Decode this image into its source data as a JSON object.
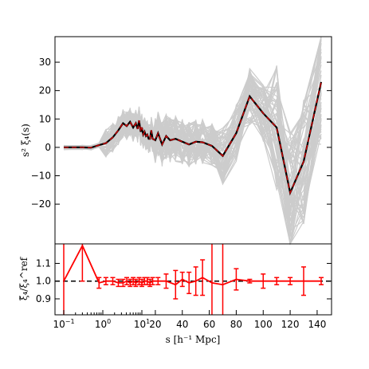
{
  "chart_data": [
    {
      "type": "line",
      "panel": "main",
      "ylabel": "s² ξ₄(s)",
      "ylim": [
        -34,
        39
      ],
      "yticks": [
        -20,
        -10,
        0,
        10,
        20,
        30
      ],
      "ytick_labels": [
        "−20",
        "−10",
        "0",
        "10",
        "20",
        "30"
      ],
      "grid": false,
      "mock_band_color": "#cccccc",
      "series": [
        {
          "color": "#000000",
          "x": [
            0.1,
            0.3,
            0.5,
            0.8,
            1.2,
            1.8,
            2.5,
            3.3,
            4.1,
            5.0,
            6.0,
            7.0,
            7.8,
            8.5,
            9.3,
            10.0,
            11.0,
            12.0,
            13.0,
            14.0,
            15.0,
            16.0,
            17.0,
            18.0,
            20,
            22,
            25,
            28,
            31,
            35,
            40,
            45,
            50,
            55,
            62,
            70,
            80,
            90,
            100,
            110,
            120,
            130,
            143
          ],
          "y": [
            0,
            0,
            -0.1,
            0.8,
            1.5,
            3.5,
            6.0,
            8.5,
            7.5,
            9.0,
            7.0,
            8.5,
            6.5,
            9.5,
            5.5,
            7.0,
            4.5,
            5.5,
            4.0,
            4.5,
            3.0,
            3.0,
            6.0,
            3.0,
            2.5,
            5.0,
            1.0,
            4.0,
            2.5,
            3.0,
            2.0,
            1.0,
            2.0,
            1.8,
            0.5,
            -3.0,
            5.0,
            18.0,
            12.0,
            7.0,
            -16.0,
            -5.0,
            23.0
          ]
        },
        {
          "color": "#cc0000",
          "dashed": true,
          "x": [
            0.1,
            0.3,
            0.5,
            0.8,
            1.2,
            1.8,
            2.5,
            3.3,
            4.1,
            5.0,
            6.0,
            7.0,
            7.8,
            8.5,
            9.3,
            10.0,
            11.0,
            12.0,
            13.0,
            14.0,
            15.0,
            16.0,
            17.0,
            18.0,
            20,
            22,
            25,
            28,
            31,
            35,
            40,
            45,
            50,
            55,
            62,
            70,
            80,
            90,
            100,
            110,
            120,
            130,
            143
          ],
          "y": [
            0,
            0,
            -0.1,
            0.8,
            1.5,
            3.5,
            6.0,
            8.5,
            7.5,
            9.0,
            7.0,
            8.5,
            6.5,
            9.5,
            5.5,
            7.0,
            4.5,
            5.5,
            4.0,
            4.5,
            3.0,
            3.0,
            6.0,
            3.0,
            2.5,
            5.0,
            1.0,
            4.0,
            2.5,
            3.0,
            2.0,
            1.0,
            2.0,
            1.8,
            0.5,
            -3.0,
            5.0,
            18.0,
            12.0,
            7.0,
            -16.0,
            -5.0,
            23.0
          ]
        }
      ]
    },
    {
      "type": "line",
      "panel": "ratio",
      "ylabel": "ξ̃₄/ξ₄^ref",
      "xlabel": "s [h⁻¹ Mpc]",
      "ylim": [
        0.81,
        1.21
      ],
      "yticks": [
        0.9,
        1.0,
        1.1
      ],
      "ytick_labels": [
        "0.9",
        "1.0",
        "1.1"
      ],
      "reference_line": 1.0,
      "x_ticks": {
        "log_part": [
          {
            "value": 0.1,
            "label": "10",
            "exp": "−1"
          },
          {
            "value": 1,
            "label": "10",
            "exp": "0"
          },
          {
            "value": 10,
            "label": "10",
            "exp": "1"
          }
        ],
        "linear_part": [
          20,
          40,
          60,
          80,
          100,
          120,
          140
        ]
      },
      "series": [
        {
          "color": "#ff0000",
          "x": [
            0.1,
            0.3,
            0.8,
            1.2,
            1.8,
            2.5,
            3.3,
            4.1,
            5.0,
            6.0,
            7.0,
            8.5,
            10.0,
            12.0,
            14.0,
            16.0,
            18.0,
            22,
            28,
            35,
            40,
            45,
            50,
            55,
            62,
            70,
            80,
            90,
            100,
            110,
            120,
            130,
            143
          ],
          "y": [
            1.0,
            1.2,
            0.99,
            1.0,
            1.0,
            0.99,
            0.99,
            1.0,
            0.99,
            1.0,
            0.99,
            1.0,
            0.99,
            1.0,
            1.0,
            0.99,
            1.0,
            1.0,
            1.0,
            0.98,
            1.01,
            0.99,
            1.0,
            1.02,
            0.99,
            0.98,
            1.01,
            1.0,
            1.0,
            1.0,
            1.0,
            1.0,
            1.0
          ],
          "err": [
            0.5,
            0.2,
            0.03,
            0.02,
            0.02,
            0.02,
            0.02,
            0.02,
            0.02,
            0.02,
            0.02,
            0.02,
            0.02,
            0.02,
            0.02,
            0.02,
            0.02,
            0.02,
            0.04,
            0.08,
            0.04,
            0.06,
            0.08,
            0.1,
            0.3,
            0.25,
            0.06,
            0.01,
            0.04,
            0.02,
            0.02,
            0.08,
            0.02
          ]
        }
      ]
    }
  ]
}
